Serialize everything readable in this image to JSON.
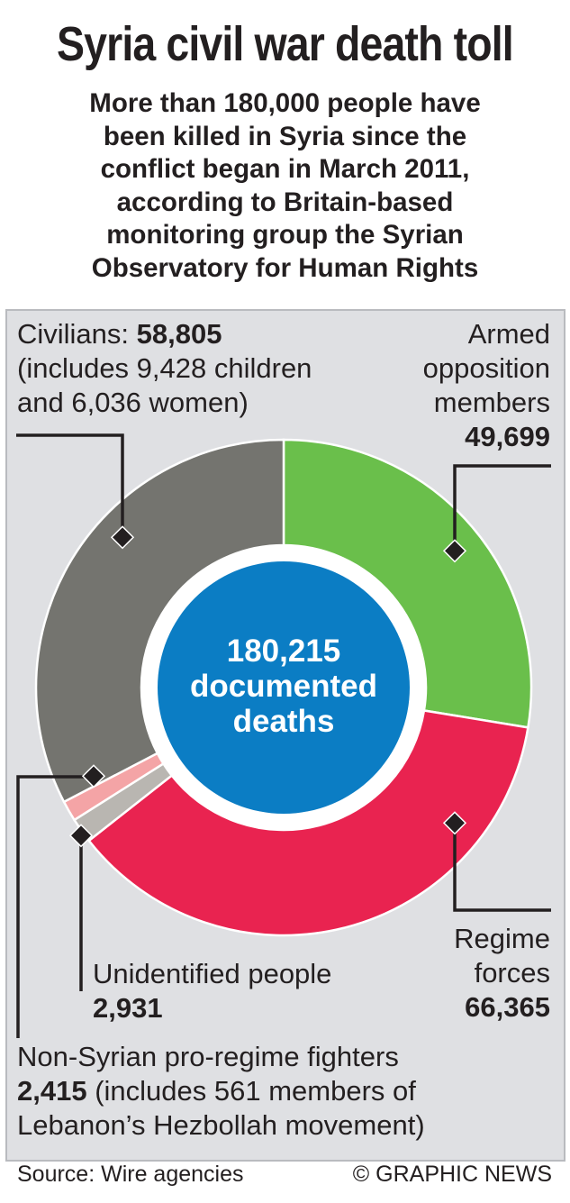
{
  "title": "Syria civil war death toll",
  "subtitle_lines": [
    "More than 180,000 people have",
    "been killed in Syria since the",
    "conflict began in March 2011,",
    "according to Britain-based",
    "monitoring group the Syrian",
    "Observatory for Human Rights"
  ],
  "center": {
    "line1": "180,215",
    "line2": "documented",
    "line3": "deaths"
  },
  "labels": {
    "civilians": {
      "prefix": "Civilians: ",
      "value": "58,805",
      "line2": "(includes 9,428 children",
      "line3": "and 6,036 women)"
    },
    "opposition": {
      "line1": "Armed",
      "line2": "opposition",
      "line3": "members",
      "value": "49,699"
    },
    "regime": {
      "line1": "Regime",
      "line2": "forces",
      "value": "66,365"
    },
    "unidentified": {
      "line1": "Unidentified people",
      "value": "2,931"
    },
    "nonsyrian": {
      "line1": "Non-Syrian pro-regime fighters",
      "value": "2,415",
      "line2_rest": " (includes 561 members of",
      "line3": "Lebanon’s Hezbollah movement)"
    }
  },
  "footer": {
    "source": "Source: Wire agencies",
    "credit": "© GRAPHIC NEWS"
  },
  "chart_data": {
    "type": "pie",
    "donut": true,
    "total": 180215,
    "start_angle_deg": 0,
    "direction": "clockwise",
    "series": [
      {
        "name": "Armed opposition members",
        "value": 49699,
        "color": "#6abf4b"
      },
      {
        "name": "Regime forces",
        "value": 66365,
        "color": "#e92350"
      },
      {
        "name": "Unidentified people",
        "value": 2931,
        "color": "#b9b6b1"
      },
      {
        "name": "Non-Syrian pro-regime fighters",
        "value": 2415,
        "color": "#f4a4a6"
      },
      {
        "name": "Civilians",
        "value": 58805,
        "color": "#74746f"
      }
    ],
    "center_color": "#0b7dc4",
    "ring_inner_color": "#ffffff"
  }
}
